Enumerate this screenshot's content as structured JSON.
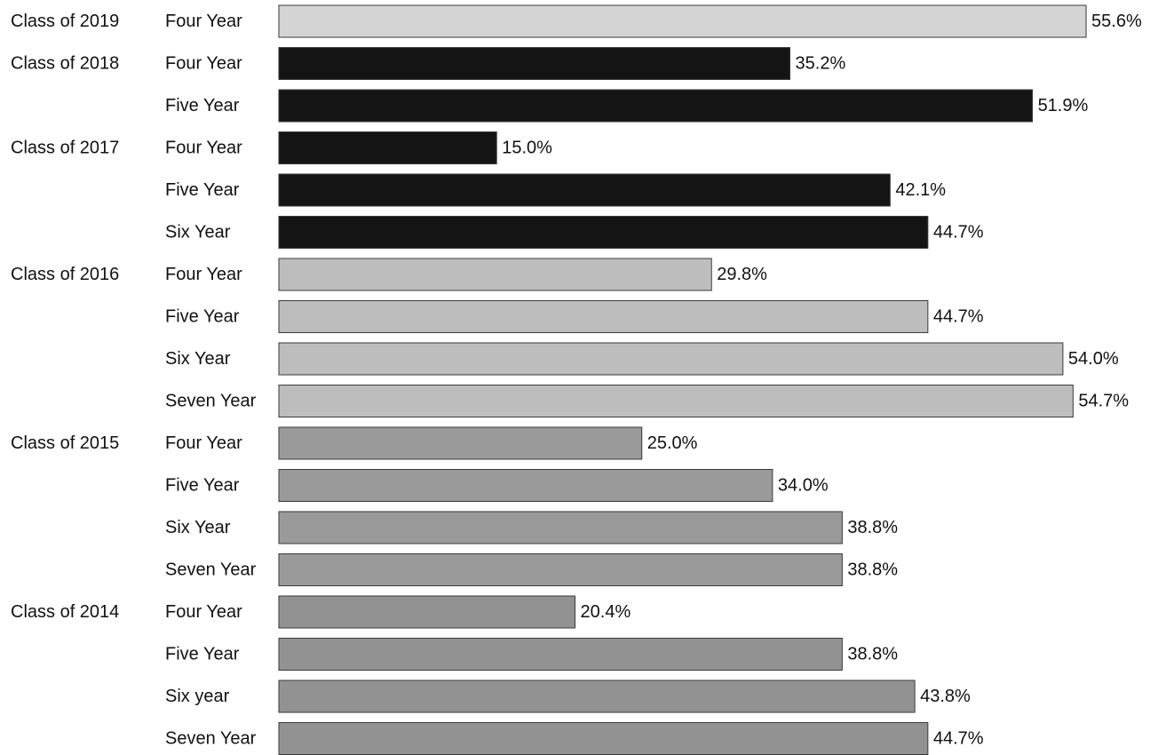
{
  "chart_data": {
    "type": "bar",
    "orientation": "horizontal",
    "title": "",
    "xlabel": "",
    "ylabel": "",
    "xlim": [
      0,
      56
    ],
    "value_format": "percent_one_decimal",
    "groups": [
      {
        "label": "Class of 2019",
        "color": "#d4d4d4",
        "bars": [
          {
            "category": "Four Year",
            "value": 55.6,
            "value_label": "55.6%"
          }
        ]
      },
      {
        "label": "Class of 2018",
        "color": "#141414",
        "bars": [
          {
            "category": "Four Year",
            "value": 35.2,
            "value_label": "35.2%"
          },
          {
            "category": "Five Year",
            "value": 51.9,
            "value_label": "51.9%"
          }
        ]
      },
      {
        "label": "Class of 2017",
        "color": "#141414",
        "bars": [
          {
            "category": "Four Year",
            "value": 15.0,
            "value_label": "15.0%"
          },
          {
            "category": "Five Year",
            "value": 42.1,
            "value_label": "42.1%"
          },
          {
            "category": "Six Year",
            "value": 44.7,
            "value_label": "44.7%"
          }
        ]
      },
      {
        "label": "Class of 2016",
        "color": "#bdbdbd",
        "bars": [
          {
            "category": "Four Year",
            "value": 29.8,
            "value_label": "29.8%"
          },
          {
            "category": "Five Year",
            "value": 44.7,
            "value_label": "44.7%"
          },
          {
            "category": "Six Year",
            "value": 54.0,
            "value_label": "54.0%"
          },
          {
            "category": "Seven Year",
            "value": 54.7,
            "value_label": "54.7%"
          }
        ]
      },
      {
        "label": "Class of 2015",
        "color": "#9a9a9a",
        "bars": [
          {
            "category": "Four Year",
            "value": 25.0,
            "value_label": "25.0%"
          },
          {
            "category": "Five Year",
            "value": 34.0,
            "value_label": "34.0%"
          },
          {
            "category": "Six Year",
            "value": 38.8,
            "value_label": "38.8%"
          },
          {
            "category": "Seven Year",
            "value": 38.8,
            "value_label": "38.8%"
          }
        ]
      },
      {
        "label": "Class of 2014",
        "color": "#929292",
        "bars": [
          {
            "category": "Four Year",
            "value": 20.4,
            "value_label": "20.4%"
          },
          {
            "category": "Five Year",
            "value": 38.8,
            "value_label": "38.8%"
          },
          {
            "category": "Six year",
            "value": 43.8,
            "value_label": "43.8%"
          },
          {
            "category": "Seven Year",
            "value": 44.7,
            "value_label": "44.7%"
          }
        ]
      }
    ]
  }
}
